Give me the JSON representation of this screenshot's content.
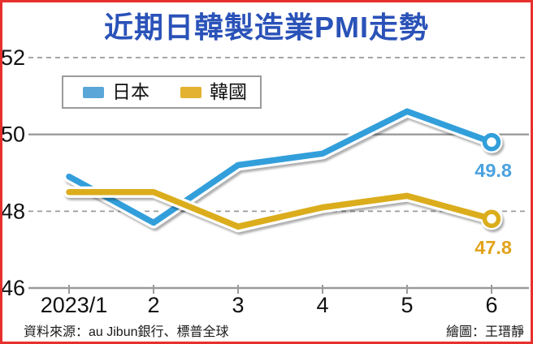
{
  "title": "近期日韓製造業PMI走勢",
  "colors": {
    "title": "#2a52b8",
    "border": "#e7302c",
    "grid": "#9b9b9b",
    "tick_label": "#111111"
  },
  "legend": {
    "items": [
      {
        "label": "日本",
        "swatch_color": "#5ba6d8"
      },
      {
        "label": "韓國",
        "swatch_color": "#e2b230"
      }
    ]
  },
  "chart_data": {
    "type": "line",
    "title": "近期日韓製造業PMI走勢",
    "x_labels": [
      "2023/1",
      "2",
      "3",
      "4",
      "5",
      "6"
    ],
    "series": [
      {
        "name": "日本",
        "color": "#339fdb",
        "label_color": "#4ba2df",
        "values": [
          48.9,
          47.7,
          49.2,
          49.5,
          50.6,
          49.8
        ],
        "end_label": "49.8"
      },
      {
        "name": "韓國",
        "color": "#dbad1e",
        "label_color": "#e2a31b",
        "values": [
          48.5,
          48.5,
          47.6,
          48.1,
          48.4,
          47.8
        ],
        "end_label": "47.8"
      }
    ],
    "ylim": [
      46,
      52
    ],
    "yticks": [
      {
        "value": 52,
        "style": "dashed"
      },
      {
        "value": 50,
        "style": "solid"
      },
      {
        "value": 48,
        "style": "dashed"
      },
      {
        "value": 46,
        "style": "solid"
      }
    ],
    "grid": true,
    "legend_position": "top-left"
  },
  "footer": {
    "source": "資料來源：au Jibun銀行、標普全球",
    "credit": "繪圖：王瑨靜"
  }
}
